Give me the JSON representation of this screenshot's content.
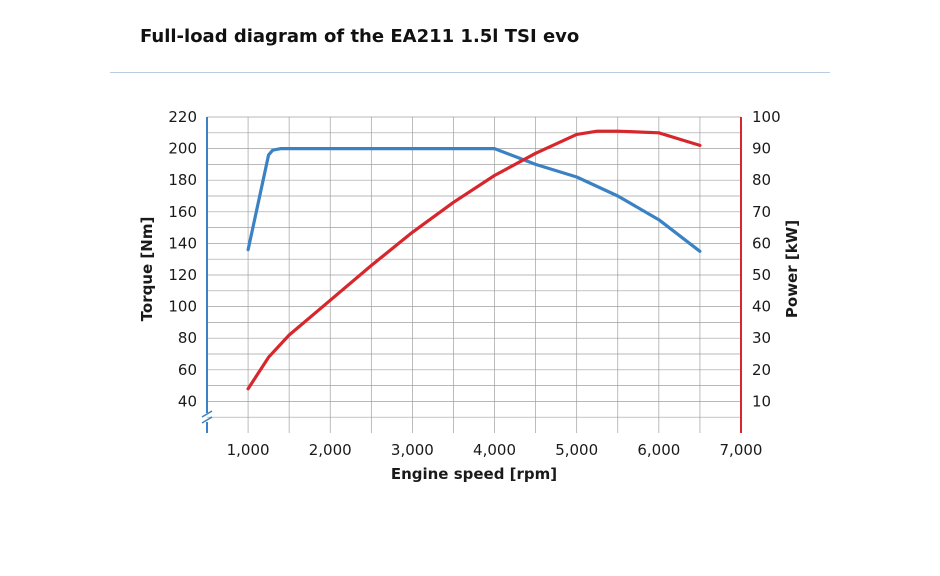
{
  "chart_data": {
    "type": "line",
    "title": "Full-load diagram of the EA211 1.5l TSI evo",
    "xlabel": "Engine speed [rpm]",
    "ylabel_left": "Torque [Nm]",
    "ylabel_right": "Power [kW]",
    "xlim": [
      500,
      7000
    ],
    "ylim_left": [
      20,
      220
    ],
    "ylim_right": [
      0,
      100
    ],
    "x_ticks": [
      1000,
      2000,
      3000,
      4000,
      5000,
      6000,
      7000
    ],
    "x_tick_labels": [
      "1,000",
      "2,000",
      "3,000",
      "4,000",
      "5,000",
      "6,000",
      "7,000"
    ],
    "y_left_ticks": [
      40,
      60,
      80,
      100,
      120,
      140,
      160,
      180,
      200,
      220
    ],
    "y_left_tick_labels": [
      "40",
      "60",
      "80",
      "100",
      "120",
      "140",
      "160",
      "180",
      "200",
      "220"
    ],
    "y_right_ticks": [
      10,
      20,
      30,
      40,
      50,
      60,
      70,
      80,
      90,
      100
    ],
    "y_right_tick_labels": [
      "10",
      "20",
      "30",
      "40",
      "50",
      "60",
      "70",
      "80",
      "90",
      "100"
    ],
    "grid": true,
    "colors": {
      "torque": "#3b82c4",
      "power": "#d7272c",
      "grid": "#a0a0a0"
    },
    "series": [
      {
        "axis": "left",
        "x": [
          1000,
          1250,
          1300,
          1400,
          2000,
          3000,
          3500,
          4000,
          4250,
          4500,
          5000,
          5500,
          6000,
          6500
        ],
        "values": [
          136,
          196,
          199,
          200,
          200,
          200,
          200,
          200,
          195,
          190,
          182,
          170,
          155,
          135
        ]
      },
      {
        "axis": "right",
        "x": [
          1000,
          1250,
          1500,
          2000,
          2500,
          3000,
          3500,
          4000,
          4500,
          5000,
          5250,
          5500,
          6000,
          6250,
          6500
        ],
        "values": [
          14,
          24,
          31,
          42,
          53,
          63.5,
          73,
          81.5,
          88.5,
          94.5,
          95.5,
          95.5,
          95,
          93,
          91
        ]
      }
    ]
  }
}
